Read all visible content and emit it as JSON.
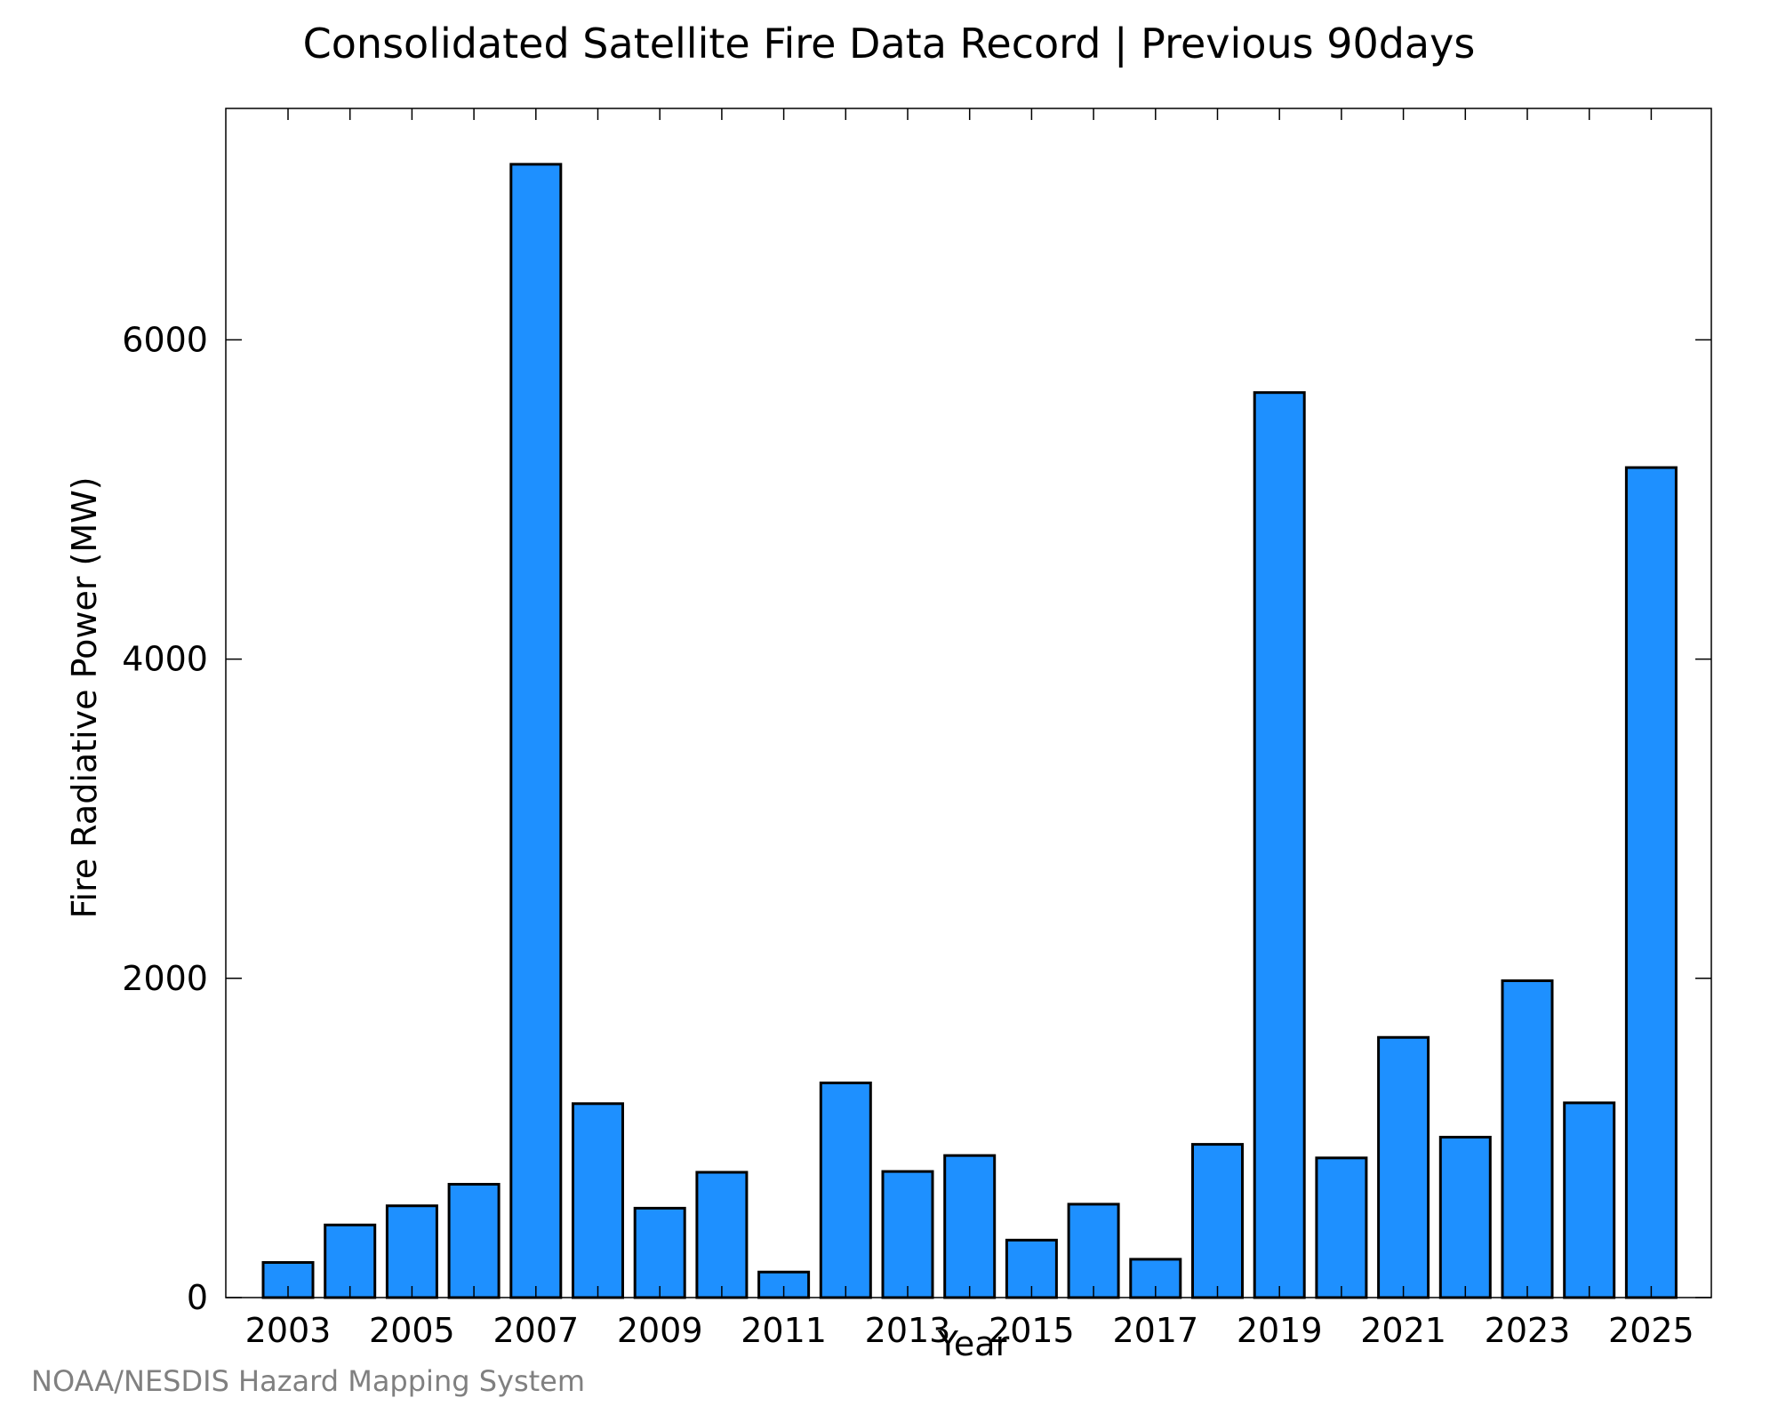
{
  "chart_data": {
    "type": "bar",
    "title": "Consolidated Satellite Fire Data Record | Previous 90days",
    "xlabel": "Year",
    "ylabel": "Fire Radiative Power (MW)",
    "source": "NOAA/NESDIS Hazard Mapping System",
    "categories": [
      "2003",
      "2004",
      "2005",
      "2006",
      "2007",
      "2008",
      "2009",
      "2010",
      "2011",
      "2012",
      "2013",
      "2014",
      "2015",
      "2016",
      "2017",
      "2018",
      "2019",
      "2020",
      "2021",
      "2022",
      "2023",
      "2024",
      "2025"
    ],
    "values": [
      220,
      455,
      575,
      710,
      7100,
      1215,
      560,
      785,
      160,
      1345,
      790,
      890,
      360,
      585,
      240,
      960,
      5670,
      875,
      1630,
      1005,
      1985,
      1220,
      5200
    ],
    "x_tick_labels": [
      "2003",
      "2005",
      "2007",
      "2009",
      "2011",
      "2013",
      "2015",
      "2017",
      "2019",
      "2021",
      "2023",
      "2025"
    ],
    "y_ticks": [
      0,
      2000,
      4000,
      6000
    ],
    "y_tick_labels": [
      "0",
      "2000",
      "4000",
      "6000"
    ],
    "ylim": [
      0,
      7450
    ],
    "grid": false,
    "bar_color": "#1e90ff",
    "edge_color": "#000000"
  }
}
